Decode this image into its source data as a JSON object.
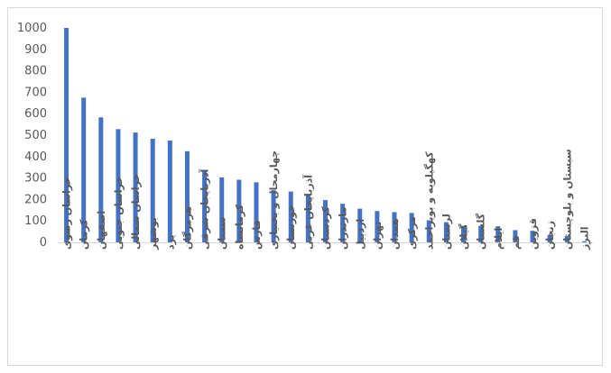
{
  "chart_data": {
    "type": "bar",
    "title": "",
    "xlabel": "",
    "ylabel": "",
    "ylim": [
      0,
      1000
    ],
    "yticks": [
      0,
      100,
      200,
      300,
      400,
      500,
      600,
      700,
      800,
      900,
      1000
    ],
    "grid": false,
    "legend": "none",
    "bar_color": "#4472c4",
    "axis_color": "#d9d9d9",
    "categories": [
      "خراسان رضوی",
      "کرمان",
      "اصفهان",
      "خراسان جنوبی",
      "خراسان شمالی",
      "بوشهر",
      "یزد",
      "هرمزگان",
      "آذربایجان شرقی",
      "سمنان",
      "کرمانشاه",
      "فارس",
      "چهارمحال و بختیاری",
      "خوزستان",
      "آذربایجان غربی",
      "کردستان",
      "مازندران",
      "اردبیل",
      "تهران",
      "همدان",
      "مرکزی",
      "کهگیلویه و بویراحمد",
      "لرستان",
      "گیلان",
      "گلستان",
      "ایلام",
      "قم",
      "قزوین",
      "زنجان",
      "سیستان و بلوچستان",
      "البرز"
    ],
    "values": [
      1000,
      675,
      583,
      528,
      512,
      483,
      475,
      425,
      332,
      303,
      292,
      280,
      243,
      237,
      225,
      197,
      180,
      157,
      146,
      141,
      137,
      103,
      94,
      77,
      77,
      75,
      57,
      54,
      35,
      30,
      5
    ]
  }
}
